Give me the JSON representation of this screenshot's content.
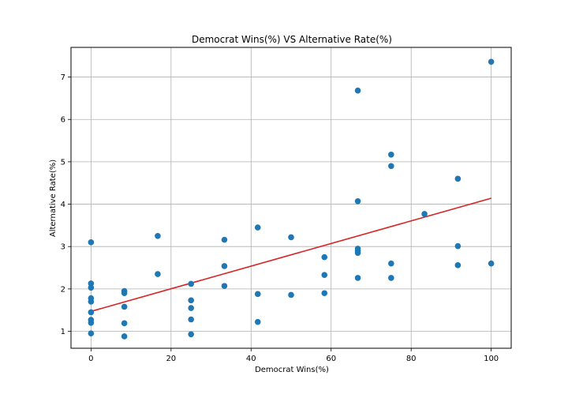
{
  "chart_data": {
    "type": "scatter",
    "title": "Democrat Wins(%) VS Alternative Rate(%)",
    "xlabel": "Democrat Wins(%)",
    "ylabel": "Alternative Rate(%)",
    "xlim": [
      -5,
      105
    ],
    "ylim": [
      0.6,
      7.7
    ],
    "xticks": [
      0,
      20,
      40,
      60,
      80,
      100
    ],
    "yticks": [
      1,
      2,
      3,
      4,
      5,
      6,
      7
    ],
    "grid": true,
    "colors": {
      "points": "#1f77b4",
      "fit_line": "#d62728",
      "grid": "#b0b0b0"
    },
    "points": [
      {
        "x": 0,
        "y": 3.1
      },
      {
        "x": 0,
        "y": 2.13
      },
      {
        "x": 0,
        "y": 2.03
      },
      {
        "x": 0,
        "y": 1.78
      },
      {
        "x": 0,
        "y": 1.7
      },
      {
        "x": 0,
        "y": 1.45
      },
      {
        "x": 0,
        "y": 1.27
      },
      {
        "x": 0,
        "y": 1.2
      },
      {
        "x": 0,
        "y": 0.95
      },
      {
        "x": 8.33,
        "y": 1.95
      },
      {
        "x": 8.33,
        "y": 1.9
      },
      {
        "x": 8.33,
        "y": 1.58
      },
      {
        "x": 8.33,
        "y": 1.19
      },
      {
        "x": 8.33,
        "y": 0.88
      },
      {
        "x": 16.67,
        "y": 3.25
      },
      {
        "x": 16.67,
        "y": 2.35
      },
      {
        "x": 25,
        "y": 2.12
      },
      {
        "x": 25,
        "y": 1.73
      },
      {
        "x": 25,
        "y": 1.55
      },
      {
        "x": 25,
        "y": 1.28
      },
      {
        "x": 25,
        "y": 0.93
      },
      {
        "x": 33.33,
        "y": 3.16
      },
      {
        "x": 33.33,
        "y": 2.54
      },
      {
        "x": 33.33,
        "y": 2.07
      },
      {
        "x": 41.67,
        "y": 3.45
      },
      {
        "x": 41.67,
        "y": 1.88
      },
      {
        "x": 41.67,
        "y": 1.22
      },
      {
        "x": 50,
        "y": 3.22
      },
      {
        "x": 50,
        "y": 1.86
      },
      {
        "x": 58.33,
        "y": 2.75
      },
      {
        "x": 58.33,
        "y": 2.33
      },
      {
        "x": 58.33,
        "y": 1.9
      },
      {
        "x": 66.67,
        "y": 6.68
      },
      {
        "x": 66.67,
        "y": 4.07
      },
      {
        "x": 66.67,
        "y": 2.95
      },
      {
        "x": 66.67,
        "y": 2.9
      },
      {
        "x": 66.67,
        "y": 2.85
      },
      {
        "x": 66.67,
        "y": 2.26
      },
      {
        "x": 75,
        "y": 5.17
      },
      {
        "x": 75,
        "y": 4.9
      },
      {
        "x": 75,
        "y": 2.6
      },
      {
        "x": 75,
        "y": 2.26
      },
      {
        "x": 83.33,
        "y": 3.77
      },
      {
        "x": 91.67,
        "y": 4.6
      },
      {
        "x": 91.67,
        "y": 3.01
      },
      {
        "x": 91.67,
        "y": 2.56
      },
      {
        "x": 100,
        "y": 7.36
      },
      {
        "x": 100,
        "y": 2.6
      }
    ],
    "fit_line": {
      "x": [
        0,
        100
      ],
      "y": [
        1.47,
        4.14
      ]
    }
  }
}
